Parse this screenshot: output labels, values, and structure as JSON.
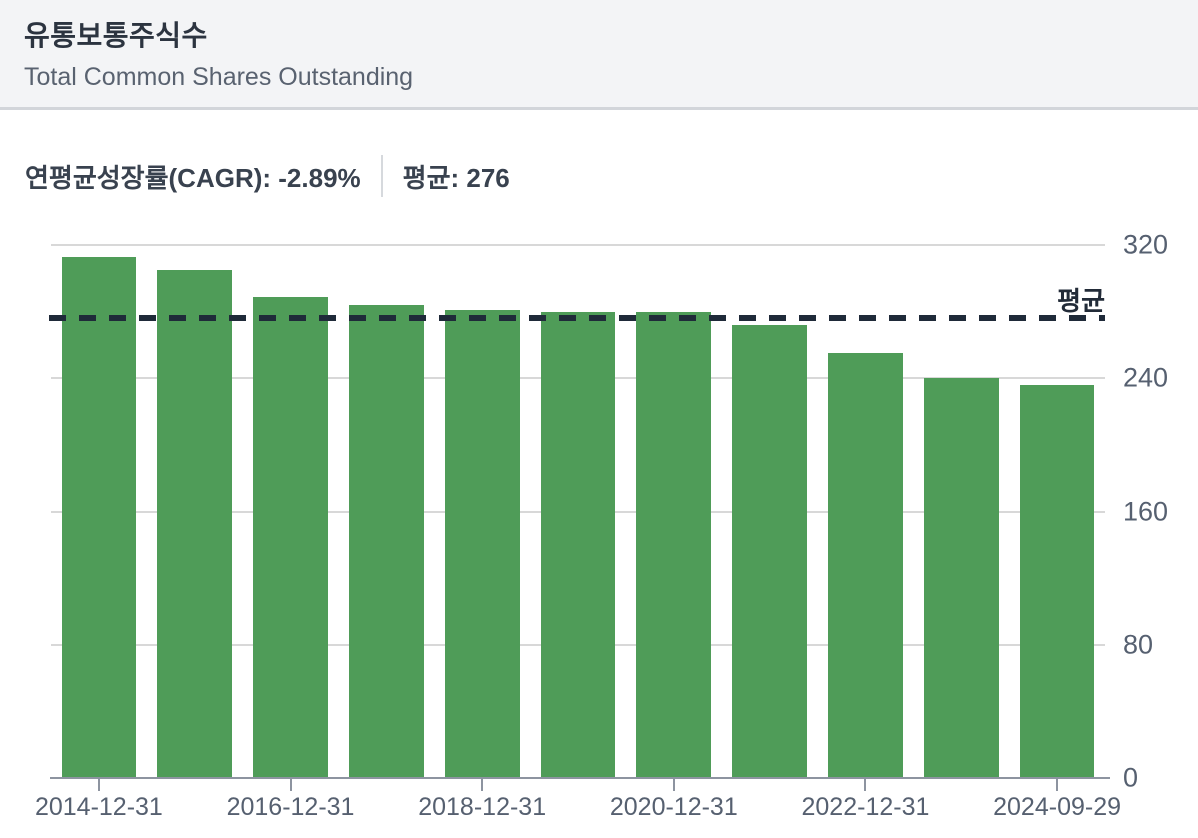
{
  "header": {
    "title": "유통보통주식수",
    "subtitle": "Total Common Shares Outstanding"
  },
  "stats": {
    "cagr": "연평균성장률(CAGR): -2.89%",
    "average": "평균: 276"
  },
  "chart_data": {
    "type": "bar",
    "categories": [
      "2014-12-31",
      "2015-12-31",
      "2016-12-31",
      "2017-12-31",
      "2018-12-31",
      "2019-12-31",
      "2020-12-31",
      "2021-12-31",
      "2022-12-31",
      "2023-12-31",
      "2024-09-29"
    ],
    "values": [
      313,
      305,
      289,
      284,
      281,
      280,
      280,
      272,
      255,
      240,
      236
    ],
    "x_tick_labels": [
      "2014-12-31",
      "2016-12-31",
      "2018-12-31",
      "2020-12-31",
      "2022-12-31",
      "2024-09-29"
    ],
    "x_tick_indices": [
      0,
      2,
      4,
      6,
      8,
      10
    ],
    "y_ticks": [
      0,
      80,
      160,
      240,
      320
    ],
    "ylim": [
      0,
      320
    ],
    "grid": true,
    "legend_position": "none",
    "average_value": 276,
    "average_annotation": "평균",
    "bar_color": "#4f9c58",
    "grid_color": "#d8d8d8",
    "axis_color": "#8d94a0",
    "avg_line_color": "#1f2a39"
  }
}
